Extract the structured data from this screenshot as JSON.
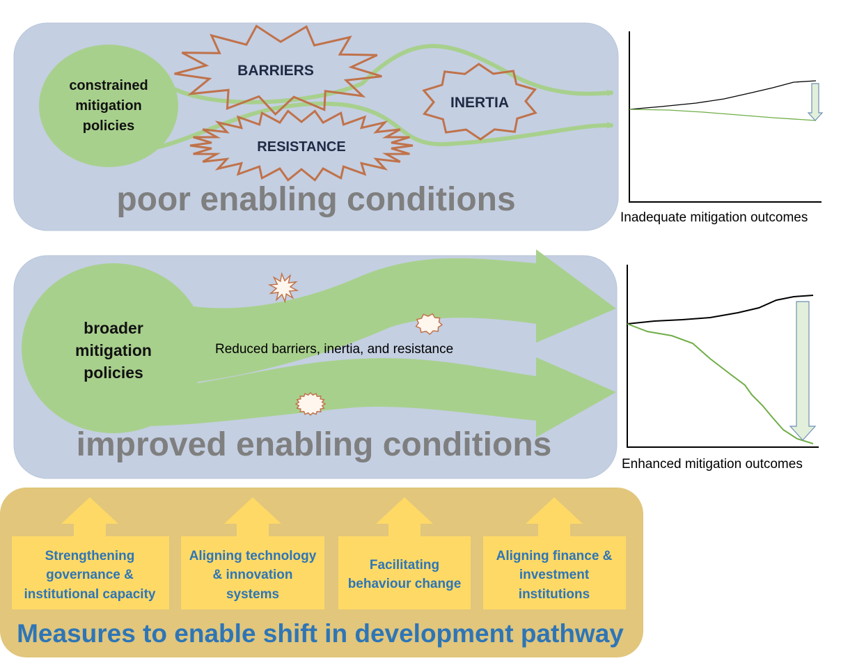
{
  "top_panel": {
    "policy_label": [
      "constrained",
      "mitigation",
      "policies"
    ],
    "barriers_label": "BARRIERS",
    "resistance_label": "RESISTANCE",
    "inertia_label": "INERTIA",
    "condition_label": "poor enabling conditions",
    "outcome_label": "Inadequate mitigation outcomes"
  },
  "middle_panel": {
    "policy_label": [
      "broader",
      "mitigation",
      "policies"
    ],
    "reduced_label": "Reduced barriers, inertia, and resistance",
    "condition_label": "improved enabling conditions",
    "outcome_label": "Enhanced mitigation outcomes"
  },
  "bottom_panel": {
    "measures": [
      [
        "Strengthening",
        "governance &",
        "institutional capacity"
      ],
      [
        "Aligning technology",
        "& innovation",
        "systems"
      ],
      [
        "Facilitating",
        "behaviour change"
      ],
      [
        "Aligning finance &",
        "investment",
        "institutions"
      ]
    ],
    "title": "Measures to enable shift in development pathway"
  },
  "colors": {
    "panel_blue": "#c4cfe2",
    "panel_gold": "#e1c67c",
    "green": "#a8d08d",
    "burst_stroke": "#c0724a",
    "box_yellow": "#ffd966",
    "title_blue": "#2e75b6",
    "grey_text": "#7f7f7f",
    "dark_text": "#1f2a44"
  }
}
